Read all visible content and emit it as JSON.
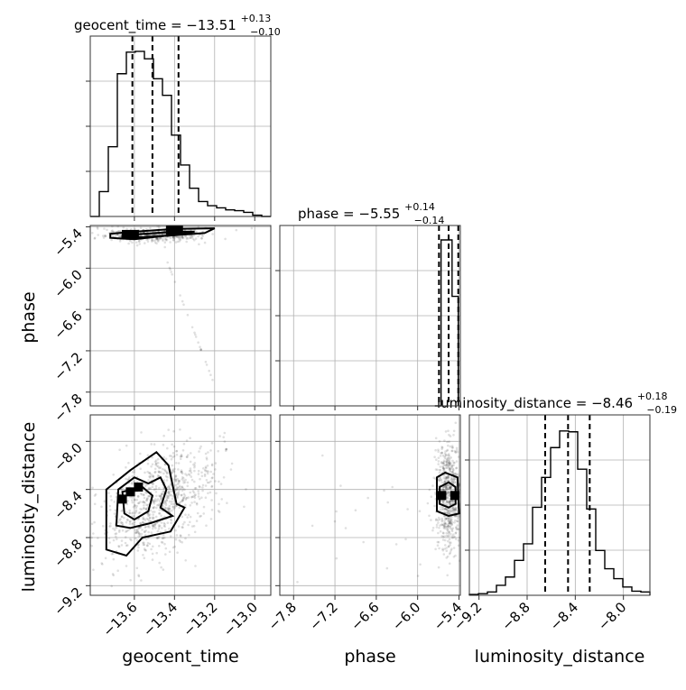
{
  "chart_data": {
    "type": "corner",
    "parameters": [
      "geocent_time",
      "phase",
      "luminosity_distance"
    ],
    "titles": {
      "geocent_time": {
        "name": "geocent_time",
        "median": "−13.51",
        "plus": "+0.13",
        "minus": "−0.10"
      },
      "phase": {
        "name": "phase",
        "median": "−5.55",
        "plus": "+0.14",
        "minus": "−0.14"
      },
      "luminosity_distance": {
        "name": "luminosity_distance",
        "median": "−8.46",
        "plus": "+0.18",
        "minus": "−0.19"
      }
    },
    "axis_labels": {
      "x": [
        "geocent_time",
        "phase",
        "luminosity_distance"
      ],
      "y": [
        "phase",
        "luminosity_distance"
      ]
    },
    "ticks": {
      "geocent_time": [
        "−13.6",
        "−13.4",
        "−13.2",
        "−13.0"
      ],
      "phase": [
        "−7.8",
        "−7.2",
        "−6.6",
        "−6.0",
        "−5.4"
      ],
      "luminosity_distance": [
        "−9.2",
        "−8.8",
        "−8.4",
        "−8.0"
      ]
    },
    "ranges": {
      "geocent_time": [
        -13.82,
        -12.92
      ],
      "phase": [
        -8.0,
        -5.38
      ],
      "luminosity_distance": [
        -9.28,
        -7.78
      ]
    },
    "quantiles": {
      "geocent_time": [
        -13.61,
        -13.51,
        -13.38
      ],
      "phase": [
        -5.69,
        -5.55,
        -5.41
      ],
      "luminosity_distance": [
        -8.65,
        -8.46,
        -8.28
      ]
    },
    "histograms": {
      "geocent_time": {
        "edges": [
          -13.82,
          -13.775,
          -13.73,
          -13.685,
          -13.64,
          -13.595,
          -13.55,
          -13.505,
          -13.46,
          -13.415,
          -13.37,
          -13.325,
          -13.28,
          -13.235,
          -13.19,
          -13.145,
          -13.1,
          -13.055,
          -13.01,
          -12.965,
          -12.92
        ],
        "counts": [
          0.0,
          0.15,
          0.42,
          0.86,
          0.99,
          0.995,
          0.95,
          0.83,
          0.73,
          0.49,
          0.31,
          0.17,
          0.09,
          0.065,
          0.052,
          0.04,
          0.035,
          0.025,
          0.008,
          0.0
        ]
      },
      "phase": {
        "edges": [
          -5.75,
          -5.66,
          -5.5,
          -5.41
        ],
        "counts": [
          0.0,
          1.0,
          0.66,
          0.0
        ]
      },
      "luminosity_distance": {
        "edges": [
          -9.28,
          -9.205,
          -9.13,
          -9.055,
          -8.98,
          -8.905,
          -8.83,
          -8.755,
          -8.68,
          -8.605,
          -8.53,
          -8.455,
          -8.38,
          -8.305,
          -8.23,
          -8.155,
          -8.08,
          -8.005,
          -7.93,
          -7.855,
          -7.78
        ],
        "counts": [
          0.005,
          0.01,
          0.02,
          0.06,
          0.11,
          0.21,
          0.31,
          0.53,
          0.71,
          0.89,
          0.99,
          0.985,
          0.76,
          0.52,
          0.27,
          0.16,
          0.1,
          0.05,
          0.025,
          0.02
        ]
      }
    },
    "contours": {
      "phase_vs_geocent_time": [
        [
          [
            -13.72,
            -5.5
          ],
          [
            -13.6,
            -5.47
          ],
          [
            -13.4,
            -5.43
          ],
          [
            -13.2,
            -5.42
          ],
          [
            -13.25,
            -5.49
          ],
          [
            -13.45,
            -5.53
          ],
          [
            -13.6,
            -5.58
          ],
          [
            -13.72,
            -5.56
          ]
        ],
        [
          [
            -13.66,
            -5.52
          ],
          [
            -13.55,
            -5.5
          ],
          [
            -13.4,
            -5.47
          ],
          [
            -13.3,
            -5.47
          ],
          [
            -13.4,
            -5.52
          ],
          [
            -13.55,
            -5.55
          ],
          [
            -13.66,
            -5.55
          ]
        ]
      ],
      "luminosity_distance_vs_geocent_time": [
        [
          [
            -13.74,
            -8.9
          ],
          [
            -13.74,
            -8.4
          ],
          [
            -13.62,
            -8.24
          ],
          [
            -13.49,
            -8.09
          ],
          [
            -13.43,
            -8.2
          ],
          [
            -13.39,
            -8.52
          ],
          [
            -13.35,
            -8.55
          ],
          [
            -13.42,
            -8.75
          ],
          [
            -13.56,
            -8.8
          ],
          [
            -13.64,
            -8.95
          ]
        ],
        [
          [
            -13.69,
            -8.7
          ],
          [
            -13.68,
            -8.4
          ],
          [
            -13.6,
            -8.3
          ],
          [
            -13.53,
            -8.35
          ],
          [
            -13.47,
            -8.3
          ],
          [
            -13.44,
            -8.4
          ],
          [
            -13.47,
            -8.55
          ],
          [
            -13.41,
            -8.62
          ],
          [
            -13.52,
            -8.68
          ],
          [
            -13.62,
            -8.72
          ]
        ],
        [
          [
            -13.65,
            -8.6
          ],
          [
            -13.66,
            -8.42
          ],
          [
            -13.56,
            -8.38
          ],
          [
            -13.51,
            -8.45
          ],
          [
            -13.53,
            -8.58
          ],
          [
            -13.6,
            -8.65
          ]
        ]
      ],
      "luminosity_distance_vs_phase": [
        [
          [
            -5.72,
            -8.3
          ],
          [
            -5.6,
            -8.26
          ],
          [
            -5.42,
            -8.3
          ],
          [
            -5.4,
            -8.6
          ],
          [
            -5.55,
            -8.62
          ],
          [
            -5.72,
            -8.58
          ]
        ],
        [
          [
            -5.68,
            -8.38
          ],
          [
            -5.55,
            -8.34
          ],
          [
            -5.45,
            -8.38
          ],
          [
            -5.45,
            -8.52
          ],
          [
            -5.55,
            -8.55
          ],
          [
            -5.68,
            -8.52
          ]
        ]
      ]
    },
    "dense_cells": {
      "phase_vs_geocent_time": [
        [
          -13.64,
          -5.51
        ],
        [
          -13.6,
          -5.51
        ],
        [
          -13.42,
          -5.45
        ],
        [
          -13.38,
          -5.45
        ]
      ],
      "luminosity_distance_vs_geocent_time": [
        [
          -13.62,
          -8.42
        ],
        [
          -13.58,
          -8.38
        ],
        [
          -13.66,
          -8.48
        ]
      ],
      "luminosity_distance_vs_phase": [
        [
          -5.65,
          -8.45
        ],
        [
          -5.46,
          -8.45
        ]
      ]
    }
  }
}
